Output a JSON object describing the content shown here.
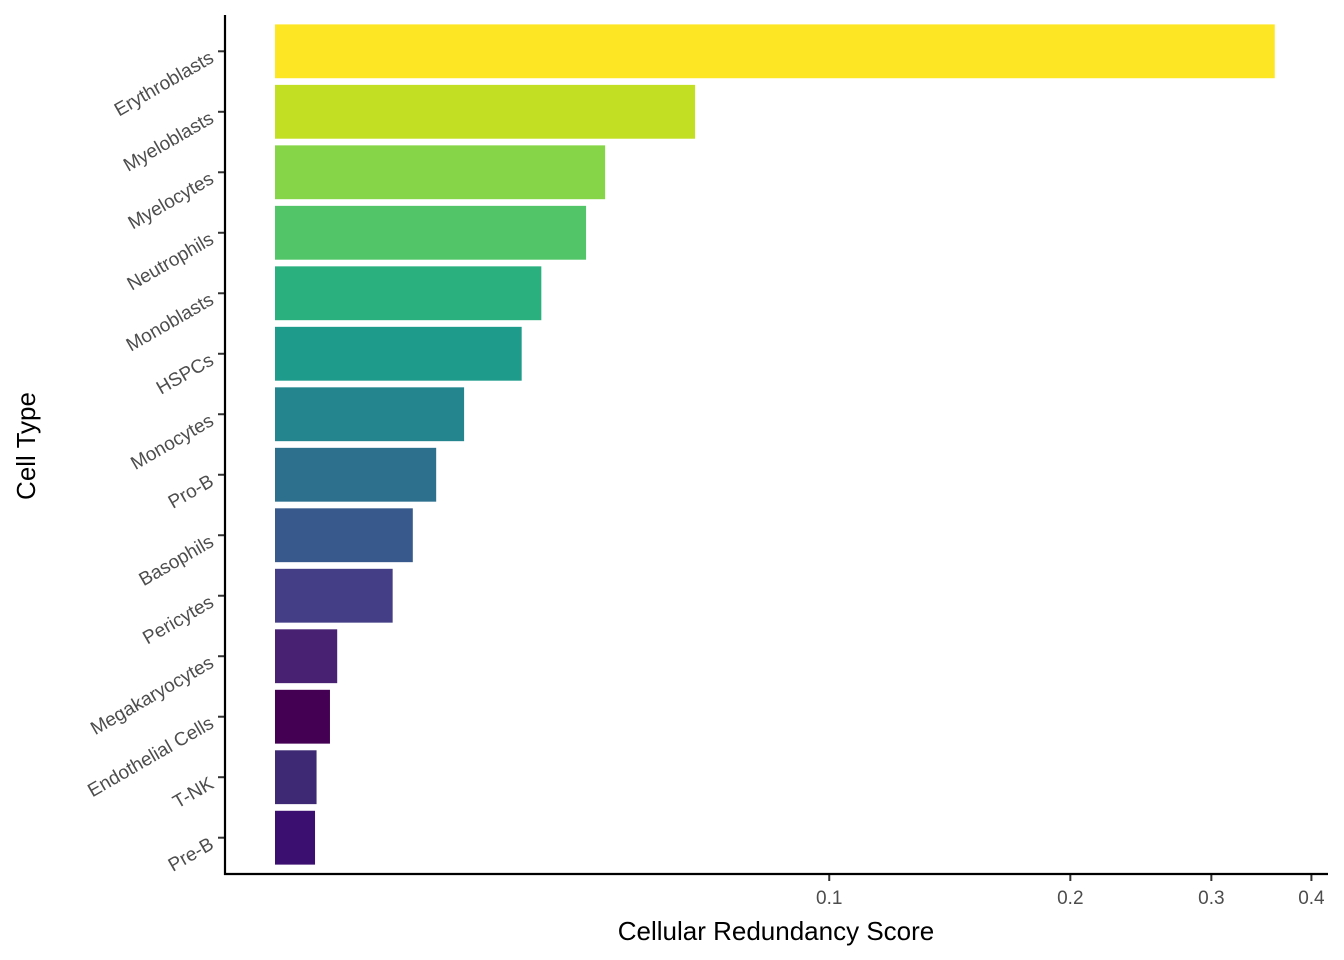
{
  "chart_data": {
    "type": "bar",
    "orientation": "horizontal",
    "xlabel": "Cellular Redundancy Score",
    "ylabel": "Cell Type",
    "x_scale": "log",
    "xlim": [
      0.0176,
      0.41
    ],
    "x_ticks": [
      {
        "value": 0.1,
        "label": "0.1"
      },
      {
        "value": 0.2,
        "label": "0.2"
      },
      {
        "value": 0.3,
        "label": "0.3"
      },
      {
        "value": 0.4,
        "label": "0.4"
      }
    ],
    "grid": false,
    "legend": "none",
    "categories": [
      "Erythroblasts",
      "Myeloblasts",
      "Myelocytes",
      "Neutrophils",
      "Monoblasts",
      "HSPCs",
      "Monocytes",
      "Pro-B",
      "Basophils",
      "Pericytes",
      "Megakaryocytes",
      "Endothelial Cells",
      "T-NK",
      "Pre-B"
    ],
    "values": [
      0.36,
      0.068,
      0.0525,
      0.0497,
      0.0437,
      0.0413,
      0.035,
      0.0323,
      0.0302,
      0.0285,
      0.0243,
      0.0238,
      0.0229,
      0.0228
    ],
    "colors": [
      "#FDE725",
      "#C2DF23",
      "#86D549",
      "#52C569",
      "#2AB07F",
      "#1E9B8A",
      "#25858E",
      "#2D708E",
      "#38598C",
      "#433E85",
      "#482173",
      "#440154",
      "#3E2A74",
      "#3B0F70"
    ]
  }
}
